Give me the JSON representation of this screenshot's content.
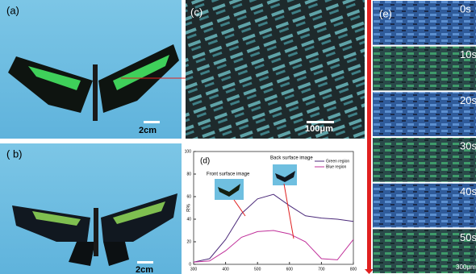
{
  "panels": {
    "a": {
      "label": "(a)",
      "scale": "2cm"
    },
    "b": {
      "label": "( b)",
      "scale": "2cm"
    },
    "c": {
      "label": "(c)",
      "scale": "100μm"
    },
    "e": {
      "label": "(e)",
      "scale": "300μm",
      "times": [
        "0s",
        "10s",
        "20s",
        "30s",
        "40s",
        "50s"
      ]
    }
  },
  "chart_data": {
    "type": "line",
    "panel_label": "(d)",
    "y_label": "R%",
    "annotations": [
      "Front surface image",
      "Back surface image"
    ],
    "x": [
      300,
      350,
      400,
      450,
      500,
      550,
      600,
      650,
      700,
      750,
      800
    ],
    "series": [
      {
        "name": "Green region",
        "color": "#4b2a7a",
        "values": [
          2,
          5,
          22,
          45,
          58,
          62,
          52,
          43,
          41,
          40,
          38
        ]
      },
      {
        "name": "Blue region",
        "color": "#c0309a",
        "values": [
          2,
          3,
          12,
          24,
          29,
          30,
          27,
          20,
          5,
          4,
          22
        ]
      }
    ],
    "xlim": [
      300,
      800
    ],
    "ylim": [
      0,
      100
    ],
    "xticks": [
      300,
      400,
      500,
      600,
      700,
      800
    ],
    "yticks": [
      0,
      20,
      40,
      60,
      80,
      100
    ]
  }
}
